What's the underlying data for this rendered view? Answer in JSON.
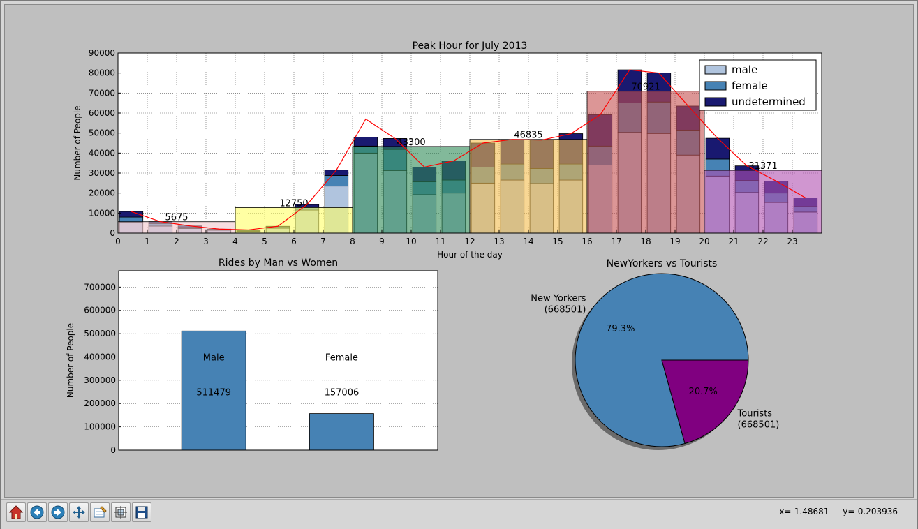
{
  "toolbar": {
    "buttons": [
      {
        "name": "home-button",
        "icon": "home-icon"
      },
      {
        "name": "back-button",
        "icon": "back-arrow-icon"
      },
      {
        "name": "forward-button",
        "icon": "forward-arrow-icon"
      },
      {
        "name": "pan-button",
        "icon": "move-icon"
      },
      {
        "name": "zoom-button",
        "icon": "zoom-rect-icon"
      },
      {
        "name": "subplots-button",
        "icon": "subplots-icon"
      },
      {
        "name": "save-button",
        "icon": "save-icon"
      }
    ]
  },
  "status": {
    "x_readout": "x=-1.48681",
    "y_readout": "y=-0.203936"
  },
  "colors": {
    "male": "#b0c4de",
    "female": "#4682b4",
    "undetermined": "#191970",
    "pie_tourists": "#800080",
    "trend_line": "#ff0000"
  },
  "chart_data": [
    {
      "type": "bar",
      "title": "Peak Hour for July 2013",
      "xlabel": "Hour of the day",
      "ylabel": "Number of People",
      "ylim": [
        0,
        90000
      ],
      "xlim": [
        0,
        24
      ],
      "yticks": [
        "0",
        "10000",
        "20000",
        "30000",
        "40000",
        "50000",
        "60000",
        "70000",
        "80000",
        "90000"
      ],
      "xticks": [
        "0",
        "1",
        "2",
        "3",
        "4",
        "5",
        "6",
        "7",
        "8",
        "9",
        "10",
        "11",
        "12",
        "13",
        "14",
        "15",
        "16",
        "17",
        "18",
        "19",
        "20",
        "21",
        "22",
        "23"
      ],
      "grid": true,
      "legend_position": "top-right",
      "stacked": true,
      "hours": [
        0,
        1,
        2,
        3,
        4,
        5,
        6,
        7,
        8,
        9,
        10,
        11,
        12,
        13,
        14,
        15,
        16,
        17,
        18,
        19,
        20,
        21,
        22,
        23
      ],
      "series": [
        {
          "name": "male",
          "values": [
            5500,
            3500,
            2300,
            1400,
            900,
            2400,
            11500,
            23500,
            40000,
            31300,
            19200,
            20000,
            25000,
            26500,
            24800,
            26500,
            34000,
            50300,
            49800,
            39000,
            28500,
            20300,
            15300,
            10500
          ]
        },
        {
          "name": "female",
          "values": [
            2500,
            1200,
            700,
            300,
            400,
            700,
            1600,
            5300,
            3500,
            10500,
            6400,
            6500,
            8000,
            8000,
            7500,
            8000,
            9500,
            14800,
            15700,
            12500,
            8500,
            6000,
            4700,
            2800
          ]
        },
        {
          "name": "undetermined",
          "values": [
            2800,
            1000,
            600,
            300,
            300,
            300,
            1200,
            2700,
            4500,
            5500,
            7400,
            9600,
            12000,
            12300,
            14200,
            15200,
            15700,
            16500,
            14500,
            12000,
            10400,
            7300,
            6000,
            4300
          ]
        }
      ],
      "trend_line": [
        10800,
        5700,
        3600,
        2000,
        1600,
        3400,
        14300,
        31500,
        57000,
        47300,
        33000,
        36100,
        45000,
        46800,
        46500,
        49700,
        59200,
        81600,
        80000,
        63500,
        47400,
        33600,
        26000,
        17600
      ]
    },
    {
      "type": "bar",
      "subtype": "shaded-periods",
      "periods": [
        {
          "start": 0,
          "end": 4,
          "value": 5675,
          "label": "5675",
          "color": "#f2c6cc"
        },
        {
          "start": 4,
          "end": 8,
          "value": 12750,
          "label": "12750",
          "color": "#ffff66"
        },
        {
          "start": 8,
          "end": 12,
          "value": 43300,
          "label": "43300",
          "color": "#2e8b57"
        },
        {
          "start": 12,
          "end": 16,
          "value": 46835,
          "label": "46835",
          "color": "#f4bc4c"
        },
        {
          "start": 16,
          "end": 20,
          "value": 70921,
          "label": "70921",
          "color": "#c55050"
        },
        {
          "start": 20,
          "end": 24,
          "value": 31371,
          "label": "31371",
          "color": "#b150b1"
        }
      ]
    },
    {
      "type": "bar",
      "title": "Rides by Man vs Women",
      "xlabel": "",
      "ylabel": "Number of People",
      "ylim": [
        0,
        770000
      ],
      "yticks": [
        "0",
        "100000",
        "200000",
        "300000",
        "400000",
        "500000",
        "600000",
        "700000"
      ],
      "grid": true,
      "categories": [
        "Male",
        "Female"
      ],
      "values": [
        511479,
        157006
      ],
      "value_labels": [
        "511479",
        "157006"
      ],
      "bar_color": "#4682b4"
    },
    {
      "type": "pie",
      "title": "NewYorkers vs Tourists",
      "shadow": true,
      "slices": [
        {
          "label": "New Yorkers",
          "value_label": "(668501)",
          "pct": 79.3,
          "pct_label": "79.3%",
          "color": "#4682b4"
        },
        {
          "label": "Tourists",
          "value_label": "(668501)",
          "pct": 20.7,
          "pct_label": "20.7%",
          "color": "#800080"
        }
      ]
    }
  ]
}
